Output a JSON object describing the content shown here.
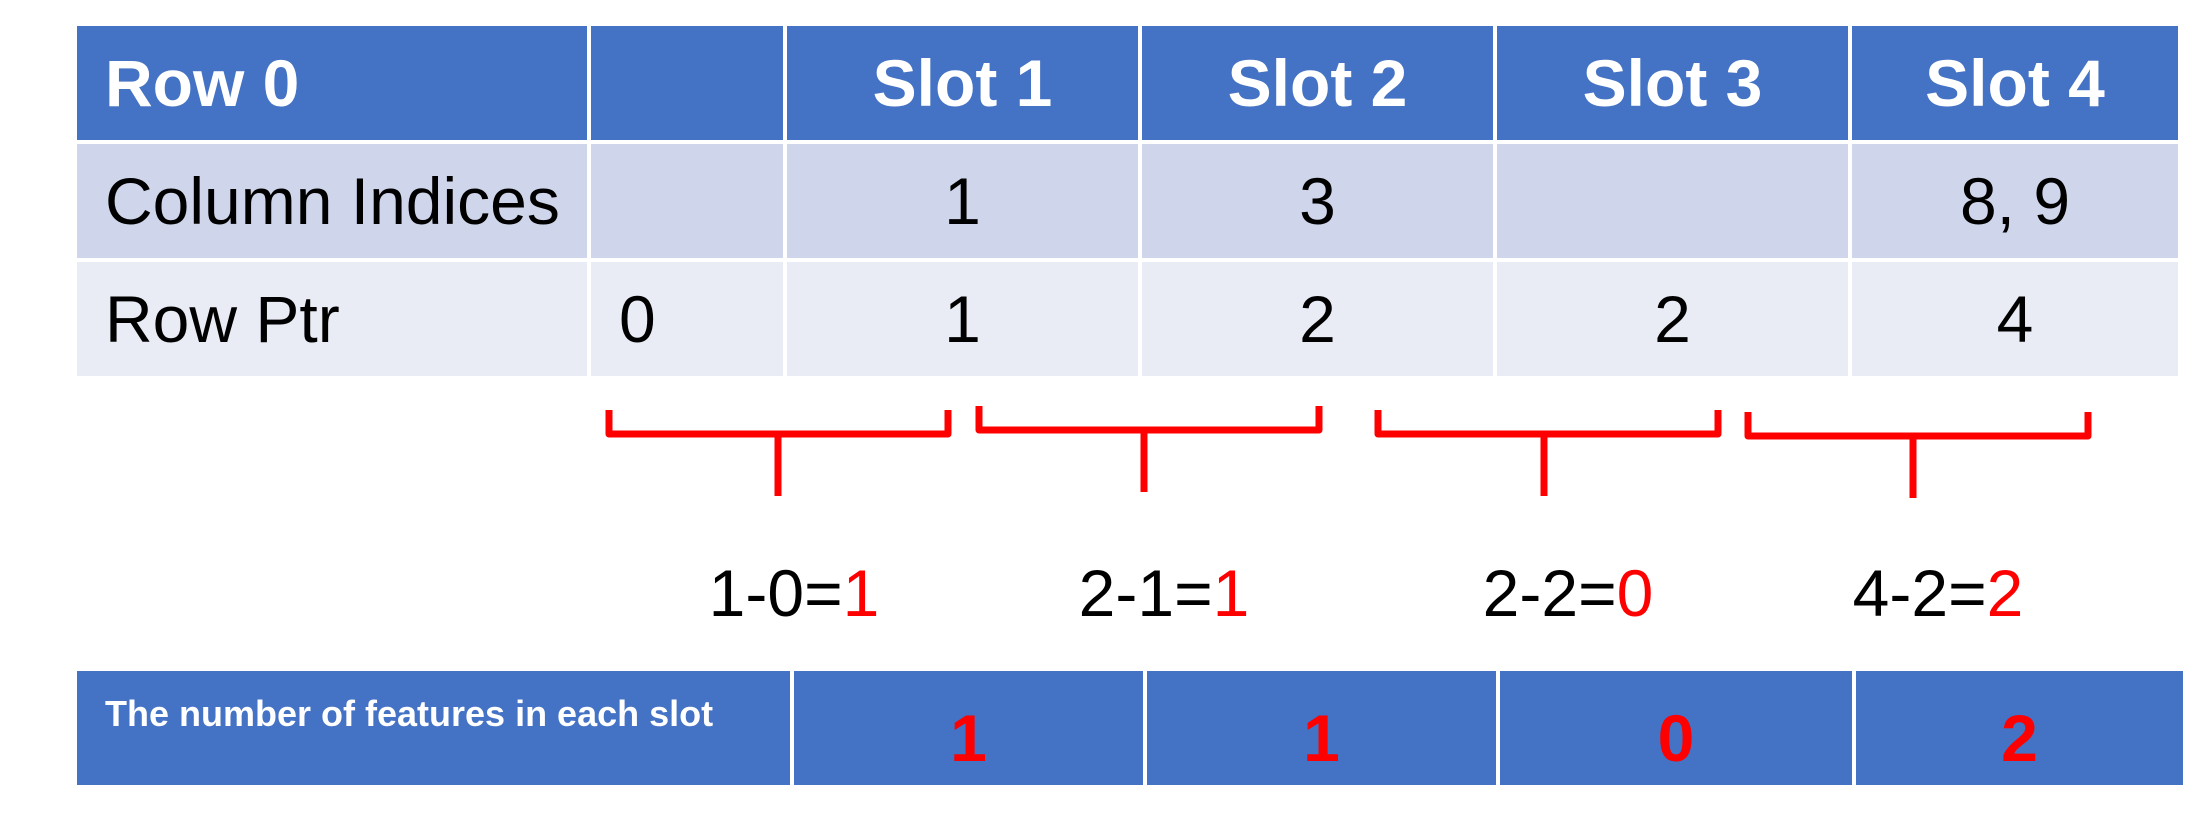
{
  "table": {
    "header": [
      "Row 0",
      "",
      "Slot 1",
      "Slot 2",
      "Slot 3",
      "Slot 4"
    ],
    "column_indices": {
      "label": "Column Indices",
      "values": [
        "",
        "1",
        "3",
        "",
        "8, 9"
      ]
    },
    "row_ptr": {
      "label": "Row Ptr",
      "values": [
        "0",
        "1",
        "2",
        "2",
        "4"
      ]
    }
  },
  "calculations": [
    {
      "expr": "1-0=",
      "result": "1"
    },
    {
      "expr": "2-1=",
      "result": "1"
    },
    {
      "expr": "2-2=",
      "result": "0"
    },
    {
      "expr": "4-2=",
      "result": "2"
    }
  ],
  "features": {
    "label": "The number of features in each slot",
    "values": [
      "1",
      "1",
      "0",
      "2"
    ]
  },
  "colors": {
    "header": "#4472c4",
    "row_dark": "#cfd5ea",
    "row_light": "#e9ebf5",
    "highlight": "#ff0000"
  }
}
